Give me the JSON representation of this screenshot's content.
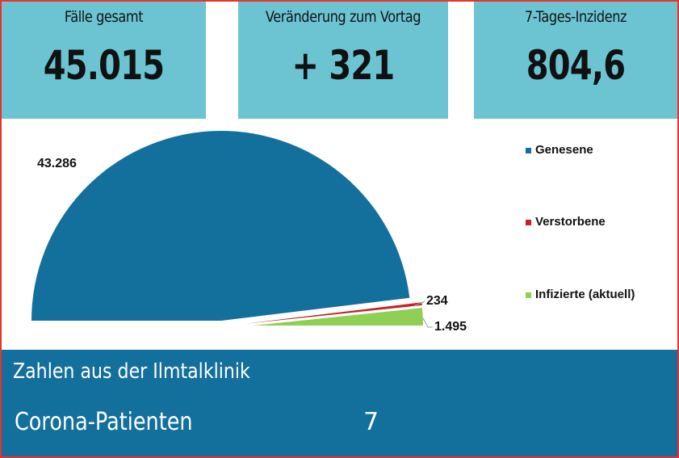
{
  "kpis": [
    {
      "label": "Fälle gesamt",
      "value": "45.015"
    },
    {
      "label": "Veränderung zum Vortag",
      "value": "+ 321"
    },
    {
      "label": "7-Tages-Inzidenz",
      "value": "804,6"
    }
  ],
  "chart_data": {
    "type": "pie",
    "variant": "half-pie, exploded",
    "categories": [
      "Genesene",
      "Verstorbene",
      "Infizierte (aktuell)"
    ],
    "values": [
      43286,
      234,
      1495
    ],
    "data_labels": [
      "43.286",
      "234",
      "1.495"
    ],
    "colors": [
      "#136f9c",
      "#c8202a",
      "#8fcf55"
    ],
    "legend_position": "right"
  },
  "bottom": {
    "title": "Zahlen aus der Ilmtalklinik",
    "row_label": "Corona-Patienten",
    "row_value": "7"
  }
}
